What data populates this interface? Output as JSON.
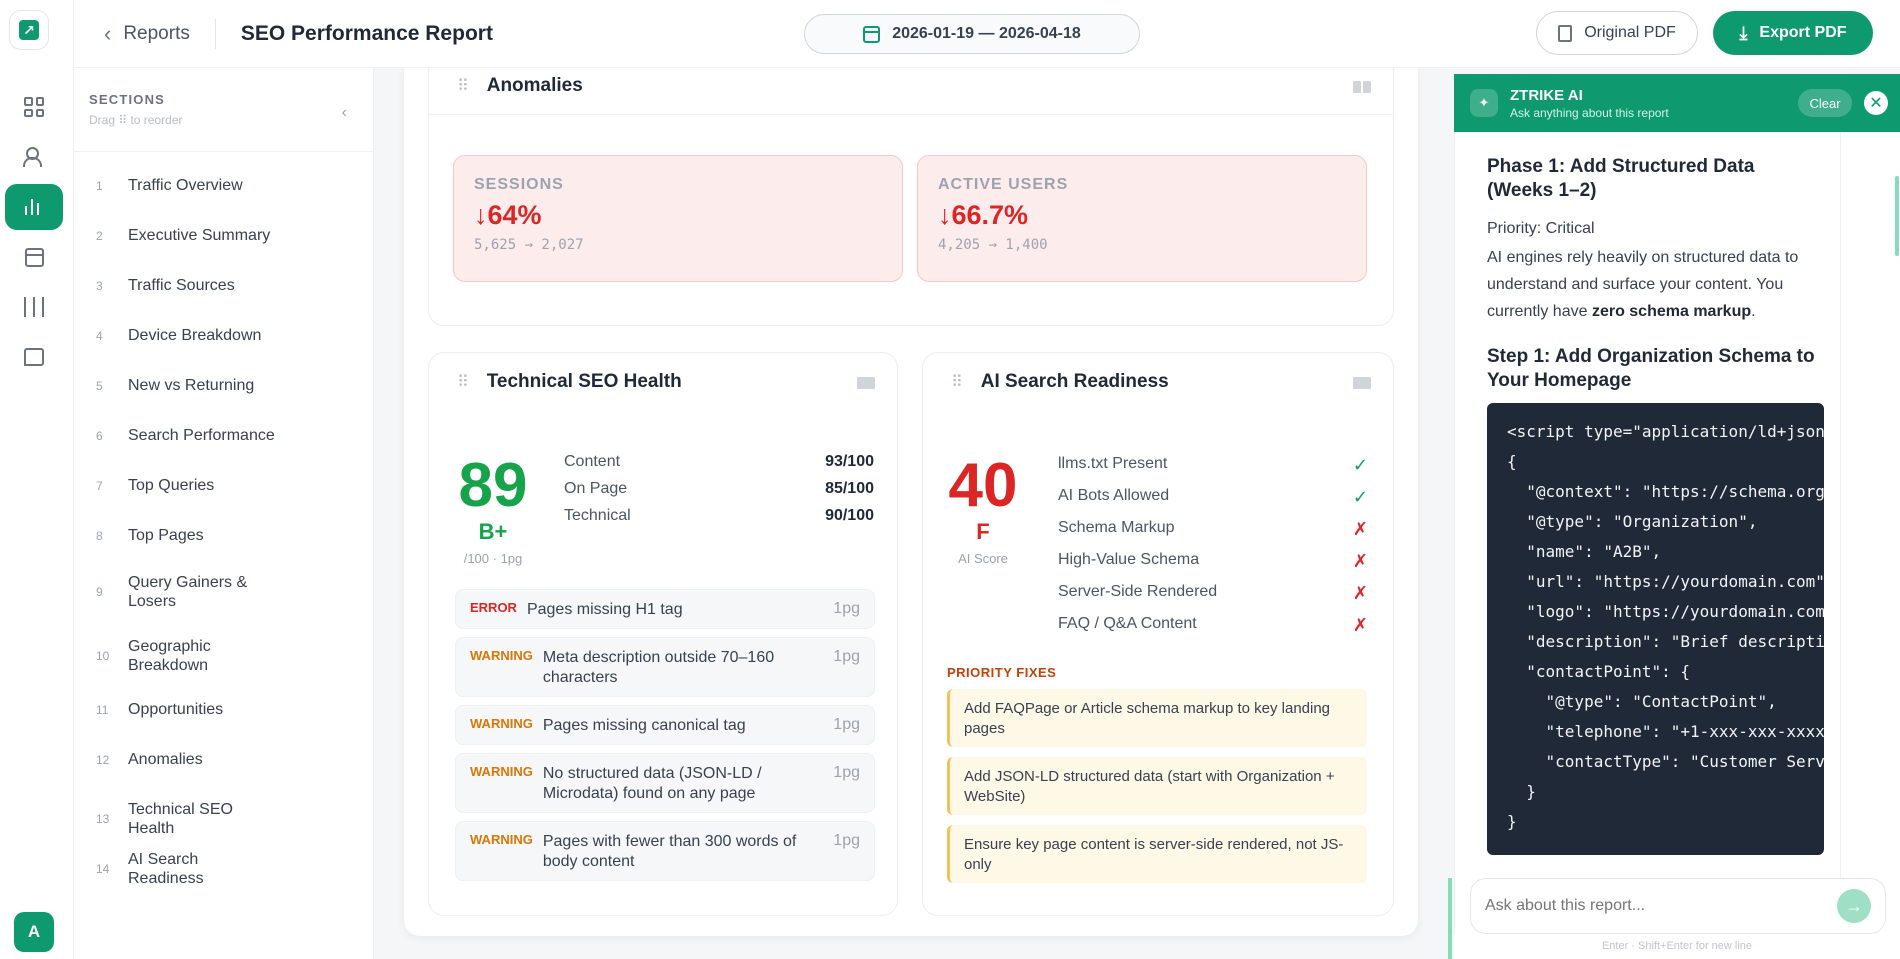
{
  "header": {
    "back_label": "Reports",
    "report_title": "SEO Performance Report",
    "date_range": "2026-01-19 — 2026-04-18",
    "original_pdf_label": "Original PDF",
    "export_pdf_label": "Export PDF"
  },
  "rail": {
    "items": [
      "dashboard-icon",
      "users-icon",
      "reports-icon",
      "calendar-icon",
      "settings-sliders-icon",
      "chat-icon"
    ],
    "active": "reports-icon",
    "avatar_initial": "A"
  },
  "sections": {
    "title": "SECTIONS",
    "subtitle": "Drag ⠿ to reorder",
    "items": [
      {
        "num": "1",
        "label": "Traffic Overview"
      },
      {
        "num": "2",
        "label": "Executive Summary"
      },
      {
        "num": "3",
        "label": "Traffic Sources"
      },
      {
        "num": "4",
        "label": "Device Breakdown"
      },
      {
        "num": "5",
        "label": "New vs Returning"
      },
      {
        "num": "6",
        "label": "Search Performance"
      },
      {
        "num": "7",
        "label": "Top Queries"
      },
      {
        "num": "8",
        "label": "Top Pages"
      },
      {
        "num": "9",
        "label": "Query Gainers & Losers"
      },
      {
        "num": "10",
        "label": "Geographic Breakdown"
      },
      {
        "num": "11",
        "label": "Opportunities"
      },
      {
        "num": "12",
        "label": "Anomalies"
      },
      {
        "num": "13",
        "label": "Technical SEO Health"
      },
      {
        "num": "14",
        "label": "AI Search Readiness"
      }
    ]
  },
  "anomalies": {
    "title": "Anomalies",
    "cards": [
      {
        "label": "SESSIONS",
        "value": "↓64%",
        "detail": "5,625 → 2,027"
      },
      {
        "label": "ACTIVE USERS",
        "value": "↓66.7%",
        "detail": "4,205 → 1,400"
      }
    ]
  },
  "technical_seo": {
    "title": "Technical SEO Health",
    "score": "89",
    "grade": "B+",
    "score_sub": "/100 · 1pg",
    "metrics": [
      {
        "label": "Content",
        "value": "93/100"
      },
      {
        "label": "On Page",
        "value": "85/100"
      },
      {
        "label": "Technical",
        "value": "90/100"
      }
    ],
    "issues": [
      {
        "severity": "ERROR",
        "text": "Pages missing H1 tag",
        "count": "1pg"
      },
      {
        "severity": "WARNING",
        "text": "Meta description outside 70–160 characters",
        "count": "1pg"
      },
      {
        "severity": "WARNING",
        "text": "Pages missing canonical tag",
        "count": "1pg"
      },
      {
        "severity": "WARNING",
        "text": "No structured data (JSON-LD / Microdata) found on any page",
        "count": "1pg"
      },
      {
        "severity": "WARNING",
        "text": "Pages with fewer than 300 words of body content",
        "count": "1pg"
      }
    ],
    "colors": {
      "score": "#16a34a",
      "error": "#dc2626",
      "warning": "#d97706"
    }
  },
  "ai_readiness": {
    "title": "AI Search Readiness",
    "score": "40",
    "grade": "F",
    "score_sub": "AI Score",
    "checks": [
      {
        "label": "llms.txt Present",
        "mark": "✓",
        "passed": true
      },
      {
        "label": "AI Bots Allowed",
        "mark": "✓",
        "passed": true
      },
      {
        "label": "Schema Markup",
        "mark": "✗",
        "passed": false
      },
      {
        "label": "High-Value Schema",
        "mark": "✗",
        "passed": false
      },
      {
        "label": "Server-Side Rendered",
        "mark": "✗",
        "passed": false
      },
      {
        "label": "FAQ / Q&A Content",
        "mark": "✗",
        "passed": false
      }
    ],
    "priority_title": "PRIORITY FIXES",
    "fixes": [
      "Add FAQPage or Article schema markup to key landing pages",
      "Add JSON-LD structured data (start with Organization + WebSite)",
      "Ensure key page content is server-side rendered, not JS-only"
    ],
    "colors": {
      "score": "#dc2626"
    }
  },
  "ai_panel": {
    "name": "ZTRIKE AI",
    "subtitle": "Ask anything about this report",
    "clear_label": "Clear",
    "heading1": "Phase 1: Add Structured Data (Weeks 1–2)",
    "priority": "Priority: Critical",
    "para_before": "AI engines rely heavily on structured data to understand and surface your content. You currently have ",
    "para_bold": "zero schema markup",
    "para_after": ".",
    "heading2": "Step 1: Add Organization Schema to Your Homepage",
    "code": "<script type=\"application/ld+json\">\n{\n  \"@context\": \"https://schema.org\",\n  \"@type\": \"Organization\",\n  \"name\": \"A2B\",\n  \"url\": \"https://yourdomain.com\",\n  \"logo\": \"https://yourdomain.com/logo.png\",\n  \"description\": \"Brief description\",\n  \"contactPoint\": {\n    \"@type\": \"ContactPoint\",\n    \"telephone\": \"+1-xxx-xxx-xxxx\",\n    \"contactType\": \"Customer Service\"\n  }\n}",
    "input_placeholder": "Ask about this report...",
    "hint": "Enter · Shift+Enter for new line"
  }
}
